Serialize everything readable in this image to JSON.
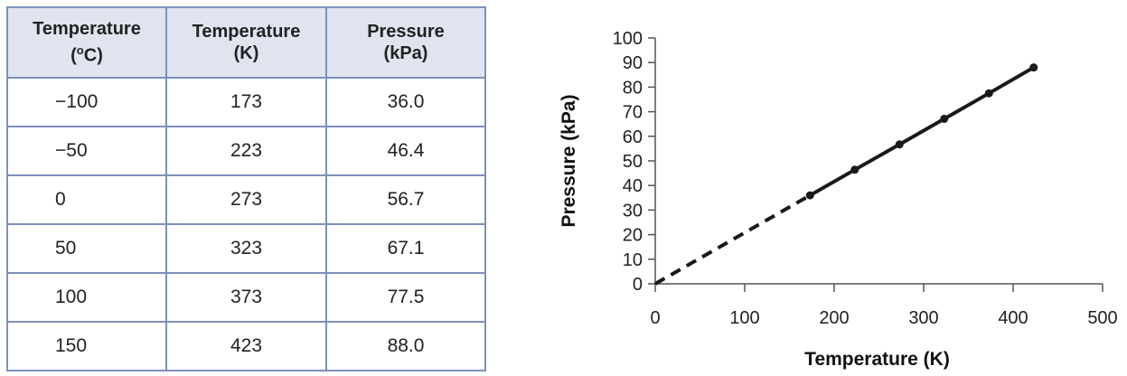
{
  "table": {
    "headers": [
      {
        "line1": "Temperature",
        "line2_pre": "(",
        "line2_sup": "o",
        "line2_post": "C)"
      },
      {
        "line1": "Temperature",
        "line2_pre": "(K)",
        "line2_sup": "",
        "line2_post": ""
      },
      {
        "line1": "Pressure",
        "line2_pre": "(kPa)",
        "line2_sup": "",
        "line2_post": ""
      }
    ],
    "rows": [
      [
        "−100",
        "173",
        "36.0"
      ],
      [
        "−50",
        "223",
        "46.4"
      ],
      [
        "0",
        "273",
        "56.7"
      ],
      [
        "50",
        "323",
        "67.1"
      ],
      [
        "100",
        "373",
        "77.5"
      ],
      [
        "150",
        "423",
        "88.0"
      ]
    ]
  },
  "chart_data": {
    "type": "line",
    "xlabel": "Temperature (K)",
    "ylabel": "Pressure (kPa)",
    "xlim": [
      0,
      500
    ],
    "ylim": [
      0,
      100
    ],
    "xticks": [
      0,
      100,
      200,
      300,
      400,
      500
    ],
    "yticks": [
      0,
      10,
      20,
      30,
      40,
      50,
      60,
      70,
      80,
      90,
      100
    ],
    "grid": false,
    "series": [
      {
        "style": "solid-with-markers",
        "color": "#1a1a1a",
        "x": [
          173,
          223,
          273,
          323,
          373,
          423
        ],
        "y": [
          36.0,
          46.4,
          56.7,
          67.1,
          77.5,
          88.0
        ]
      },
      {
        "style": "dashed-extrapolation",
        "color": "#1a1a1a",
        "x": [
          0,
          173
        ],
        "y": [
          0,
          36.0
        ]
      }
    ]
  }
}
